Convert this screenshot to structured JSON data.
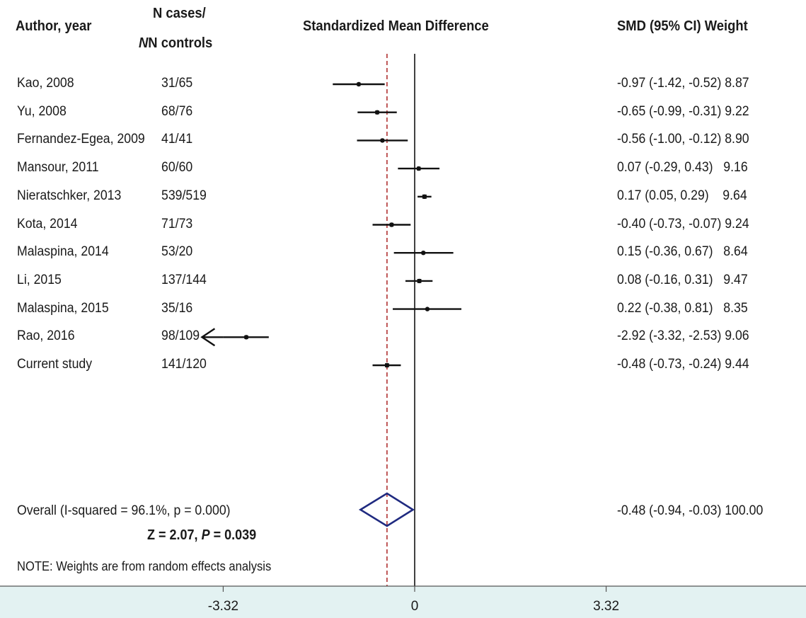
{
  "headers": {
    "author": "Author, year",
    "n_cases": "N cases/",
    "n_controls": "N controls",
    "plot": "Standardized Mean Difference",
    "stats": "SMD (95% CI) Weight"
  },
  "note": "NOTE: Weights are from random effects analysis",
  "test": {
    "z_label": "Z",
    "z_value": "2.07",
    "p_label": "P",
    "p_value": "0.039"
  },
  "colors": {
    "diamond": "#1f2a80",
    "reference_line": "#b03030",
    "axis_band": "#e3f2f2"
  },
  "chart_data": {
    "type": "forest",
    "xlabel": "",
    "ylabel": "",
    "xlim": [
      -4.6,
      5.2
    ],
    "xticks": [
      -3.32,
      0,
      3.32
    ],
    "xtick_labels": [
      "-3.32",
      "0",
      "3.32"
    ],
    "null_line": 0,
    "pooled_line": -0.48,
    "studies": [
      {
        "study": "Kao, 2008",
        "n": "31/65",
        "smd": -0.97,
        "lo": -1.42,
        "hi": -0.52,
        "weight": 8.87,
        "label": "-0.97 (-1.42, -0.52) 8.87"
      },
      {
        "study": "Yu, 2008",
        "n": "68/76",
        "smd": -0.65,
        "lo": -0.99,
        "hi": -0.31,
        "weight": 9.22,
        "label": "-0.65 (-0.99, -0.31) 9.22"
      },
      {
        "study": "Fernandez-Egea, 2009",
        "n": "41/41",
        "smd": -0.56,
        "lo": -1.0,
        "hi": -0.12,
        "weight": 8.9,
        "label": "-0.56 (-1.00, -0.12) 8.90"
      },
      {
        "study": "Mansour, 2011",
        "n": "60/60",
        "smd": 0.07,
        "lo": -0.29,
        "hi": 0.43,
        "weight": 9.16,
        "label": "0.07 (-0.29, 0.43)   9.16"
      },
      {
        "study": "Nieratschker, 2013",
        "n": "539/519",
        "smd": 0.17,
        "lo": 0.05,
        "hi": 0.29,
        "weight": 9.64,
        "label": "0.17 (0.05, 0.29)    9.64"
      },
      {
        "study": "Kota, 2014",
        "n": "71/73",
        "smd": -0.4,
        "lo": -0.73,
        "hi": -0.07,
        "weight": 9.24,
        "label": "-0.40 (-0.73, -0.07) 9.24"
      },
      {
        "study": "Malaspina, 2014",
        "n": "53/20",
        "smd": 0.15,
        "lo": -0.36,
        "hi": 0.67,
        "weight": 8.64,
        "label": "0.15 (-0.36, 0.67)   8.64"
      },
      {
        "study": "Li, 2015",
        "n": "137/144",
        "smd": 0.08,
        "lo": -0.16,
        "hi": 0.31,
        "weight": 9.47,
        "label": "0.08 (-0.16, 0.31)   9.47"
      },
      {
        "study": "Malaspina, 2015",
        "n": "35/16",
        "smd": 0.22,
        "lo": -0.38,
        "hi": 0.81,
        "weight": 8.35,
        "label": "0.22 (-0.38, 0.81)   8.35"
      },
      {
        "study": "Rao, 2016",
        "n": "98/109",
        "smd": -2.92,
        "lo": -3.32,
        "hi": -2.53,
        "weight": 9.06,
        "label": "-2.92 (-3.32, -2.53) 9.06",
        "clipped_left": true
      },
      {
        "study": "Current study",
        "n": "141/120",
        "smd": -0.48,
        "lo": -0.73,
        "hi": -0.24,
        "weight": 9.44,
        "label": "-0.48 (-0.73, -0.24) 9.44"
      }
    ],
    "overall": {
      "study": "Overall  (I-squared = 96.1%, p = 0.000)",
      "smd": -0.48,
      "lo": -0.94,
      "hi": -0.03,
      "weight": 100.0,
      "label": "-0.48 (-0.94, -0.03) 100.00"
    }
  }
}
